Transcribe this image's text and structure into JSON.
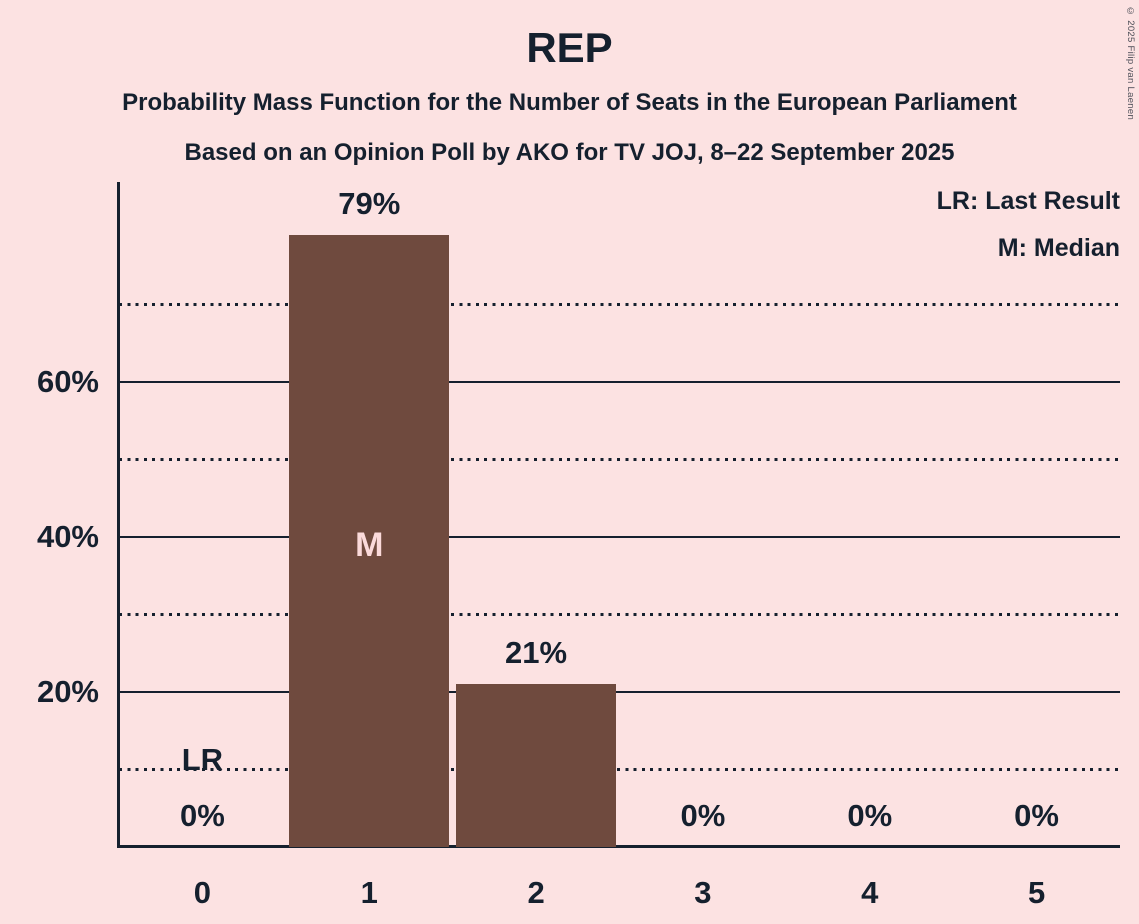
{
  "titles": {
    "title": "REP",
    "subtitle1": "Probability Mass Function for the Number of Seats in the European Parliament",
    "subtitle2": "Based on an Opinion Poll by AKO for TV JOJ, 8–22 September 2025"
  },
  "legend": {
    "last_result": "LR: Last Result",
    "median": "M: Median"
  },
  "copyright": "© 2025 Filip van Laenen",
  "colors": {
    "background": "#FCE2E2",
    "bar": "#6F4A3E",
    "ink": "#15202E",
    "bar_inside_label": "#FBDADA"
  },
  "chart_data": {
    "type": "bar",
    "title": "REP",
    "categories": [
      "0",
      "1",
      "2",
      "3",
      "4",
      "5"
    ],
    "values": [
      0,
      79,
      21,
      0,
      0,
      0
    ],
    "value_labels": [
      "0%",
      "79%",
      "21%",
      "0%",
      "0%",
      "0%"
    ],
    "annotations": [
      {
        "category_index": 0,
        "label": "LR",
        "meaning": "Last Result",
        "inside_bar": false
      },
      {
        "category_index": 1,
        "label": "M",
        "meaning": "Median",
        "inside_bar": true
      }
    ],
    "y_ticks": [
      {
        "value": 20,
        "label": "20%"
      },
      {
        "value": 40,
        "label": "40%"
      },
      {
        "value": 60,
        "label": "60%"
      }
    ],
    "solid_gridlines": [
      20,
      40,
      60
    ],
    "dotted_gridlines": [
      10,
      30,
      50,
      70
    ],
    "ylim": [
      0,
      86
    ],
    "xlabel": "",
    "ylabel": "",
    "grid": "horizontal",
    "legend_position": "top-right"
  }
}
